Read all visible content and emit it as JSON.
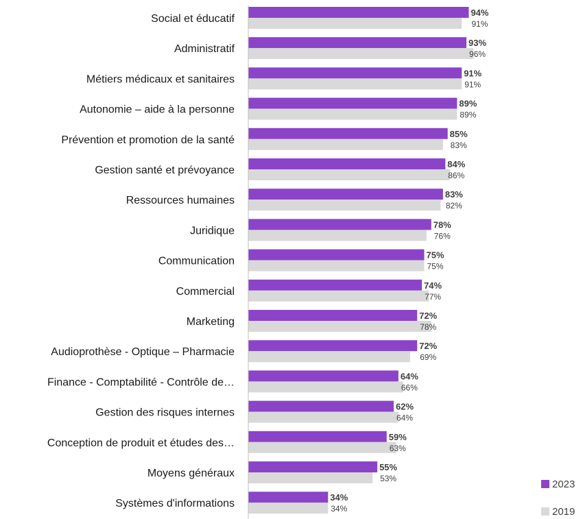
{
  "chart_data": {
    "type": "bar",
    "orientation": "horizontal",
    "title": "",
    "xlabel": "",
    "ylabel": "",
    "xlim": [
      0,
      100
    ],
    "grid": false,
    "legend_position": "bottom-right",
    "categories": [
      "Social et éducatif",
      "Administratif",
      "Métiers médicaux et sanitaires",
      "Autonomie – aide à la personne",
      "Prévention et promotion de la santé",
      "Gestion santé et prévoyance",
      "Ressources humaines",
      "Juridique",
      "Communication",
      "Commercial",
      "Marketing",
      "Audioprothèse - Optique – Pharmacie",
      "Finance - Comptabilité - Contrôle de…",
      "Gestion des risques internes",
      "Conception de produit et études des…",
      "Moyens généraux",
      "Systèmes d'informations"
    ],
    "series": [
      {
        "name": "2023",
        "color": "#8b44c8",
        "values": [
          94,
          93,
          91,
          89,
          85,
          84,
          83,
          78,
          75,
          74,
          72,
          72,
          64,
          62,
          59,
          55,
          34
        ],
        "labels": [
          "94%",
          "93%",
          "91%",
          "89%",
          "85%",
          "84%",
          "83%",
          "78%",
          "75%",
          "74%",
          "72%",
          "72%",
          "64%",
          "62%",
          "59%",
          "55%",
          "34%"
        ]
      },
      {
        "name": "2019",
        "color": "#d9d9d9",
        "values": [
          91,
          96,
          91,
          89,
          83,
          86,
          82,
          76,
          75,
          77,
          78,
          69,
          66,
          64,
          63,
          53,
          34
        ],
        "labels": [
          "91%",
          "96%",
          "91%",
          "89%",
          "83%",
          "86%",
          "82%",
          "76%",
          "75%",
          "77%",
          "78%",
          "69%",
          "66%",
          "64%",
          "63%",
          "53%",
          "34%"
        ]
      }
    ]
  }
}
